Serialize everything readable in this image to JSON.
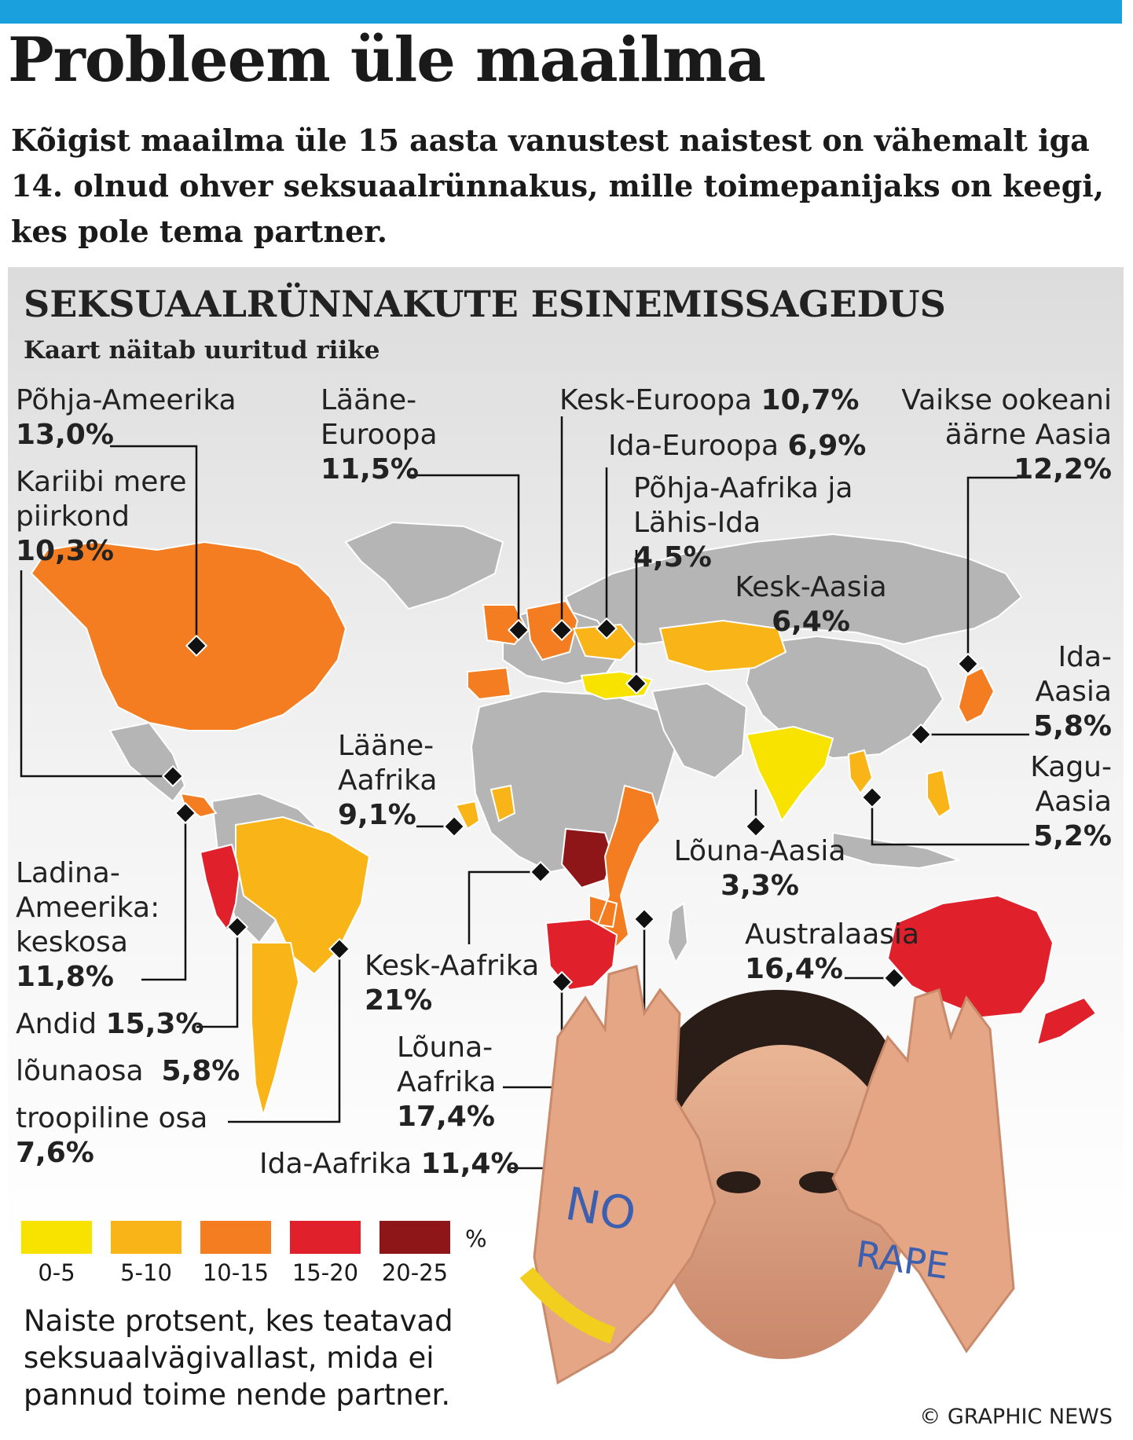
{
  "headline": "Probleem üle maailma",
  "intro": "Kõigist maailma üle 15 aasta vanustest naistest on vähemalt iga 14. olnud ohver seksuaalrünnakus, mille toimepanijaks on keegi, kes pole tema partner.",
  "map_title": "SEKSUAALRÜNNAKUTE ESINEMISSAGEDUS",
  "map_subtitle": "Kaart näitab uuritud riike",
  "regions": {
    "north_america": {
      "name": "Põhja-Ameerika",
      "value": "13,0%"
    },
    "caribbean": {
      "name": "Kariibi mere piirkond",
      "value": "10,3%"
    },
    "western_europe": {
      "name": "Lääne-Euroopa",
      "value": "11,5%"
    },
    "central_europe": {
      "name": "Kesk-Euroopa",
      "value": "10,7%"
    },
    "eastern_europe": {
      "name": "Ida-Euroopa",
      "value": "6,9%"
    },
    "north_africa_middle_east": {
      "name": "Põhja-Aafrika ja Lähis-Ida",
      "value": "4,5%"
    },
    "central_asia": {
      "name": "Kesk-Aasia",
      "value": "6,4%"
    },
    "asia_pacific": {
      "name": "Vaikse ookeani äärne Aasia",
      "value": "12,2%"
    },
    "east_asia": {
      "name": "Ida-Aasia",
      "value": "5,8%"
    },
    "southeast_asia": {
      "name": "Kagu-Aasia",
      "value": "5,2%"
    },
    "south_asia": {
      "name": "Lõuna-Aasia",
      "value": "3,3%"
    },
    "west_africa": {
      "name": "Lääne-Aafrika",
      "value": "9,1%"
    },
    "central_africa": {
      "name": "Kesk-Aafrika",
      "value": "21%"
    },
    "southern_africa": {
      "name": "Lõuna-Aafrika",
      "value": "17,4%"
    },
    "east_africa": {
      "name": "Ida-Aafrika",
      "value": "11,4%"
    },
    "australasia": {
      "name": "Australaasia",
      "value": "16,4%"
    },
    "central_latin_america": {
      "name": "Ladina-Ameerika: keskosa",
      "value": "11,8%"
    },
    "andes": {
      "name": "Andid",
      "value": "15,3%"
    },
    "southern_latin_america": {
      "name": "lõunaosa",
      "value": "5,8%"
    },
    "tropical_latin_america": {
      "name": "troopiline osa",
      "value": "7,6%"
    }
  },
  "legend": {
    "bins": [
      {
        "label": "0-5",
        "color": "#f7e200"
      },
      {
        "label": "5-10",
        "color": "#f9b418"
      },
      {
        "label": "10-15",
        "color": "#f47d21"
      },
      {
        "label": "15-20",
        "color": "#e0202a"
      },
      {
        "label": "20-25",
        "color": "#8e1518"
      }
    ],
    "unit": "%",
    "note": "Naiste protsent, kes teatavad seksuaalvägivallast, mida ei pannud toime nende partner."
  },
  "photo_text": {
    "left_hand": "NO",
    "right_hand": "RAPE"
  },
  "credit": "© GRAPHIC NEWS",
  "colors": {
    "accent": "#1aa0dc",
    "no_data": "#b5b5b5",
    "border": "#ffffff"
  }
}
